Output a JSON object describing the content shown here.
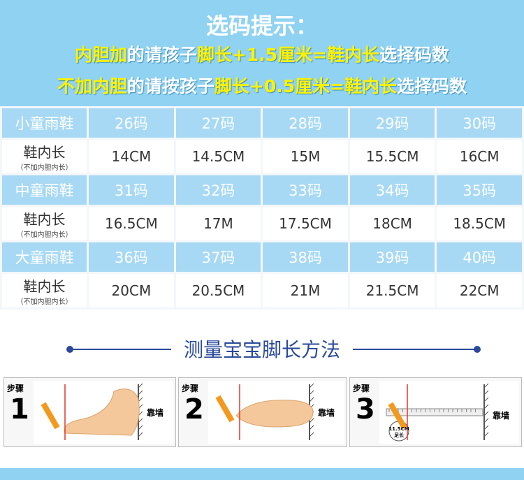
{
  "header": {
    "title": "选码提示：",
    "lines": [
      [
        {
          "text": "内胆加",
          "highlight": true
        },
        {
          "text": "的请孩子",
          "highlight": false
        },
        {
          "text": "脚长+1.5厘米=鞋内长",
          "highlight": true
        },
        {
          "text": "选择码数",
          "highlight": false
        }
      ],
      [
        {
          "text": "不加内胆",
          "highlight": true
        },
        {
          "text": "的请按孩子",
          "highlight": false
        },
        {
          "text": "脚长+0.5厘米=鞋内长",
          "highlight": true
        },
        {
          "text": "选择码数",
          "highlight": false
        }
      ]
    ]
  },
  "table": {
    "groups": [
      {
        "name": "小童雨鞋",
        "sizes": [
          "26码",
          "27码",
          "28码",
          "29码",
          "30码"
        ],
        "label": "鞋内长",
        "sublabel": "（不加内胆内长）",
        "lengths": [
          "14CM",
          "14.5CM",
          "15M",
          "15.5CM",
          "16CM"
        ]
      },
      {
        "name": "中童雨鞋",
        "sizes": [
          "31码",
          "32码",
          "33码",
          "34码",
          "35码"
        ],
        "label": "鞋内长",
        "sublabel": "（不加内胆内长）",
        "lengths": [
          "16.5CM",
          "17M",
          "17.5CM",
          "18CM",
          "18.5CM"
        ]
      },
      {
        "name": "大童雨鞋",
        "sizes": [
          "36码",
          "37码",
          "38码",
          "39码",
          "40码"
        ],
        "label": "鞋内长",
        "sublabel": "（不加内胆内长）",
        "lengths": [
          "20CM",
          "20.5CM",
          "21M",
          "21.5CM",
          "22CM"
        ]
      }
    ]
  },
  "method": {
    "title": "测量宝宝脚长方法",
    "steps": [
      {
        "label": "步骤",
        "number": "1",
        "wall": "靠墙"
      },
      {
        "label": "步骤",
        "number": "2",
        "wall": "靠墙"
      },
      {
        "label": "步骤",
        "number": "3",
        "wall": "靠墙",
        "note": "11.5CM",
        "note2": "足长"
      }
    ]
  }
}
